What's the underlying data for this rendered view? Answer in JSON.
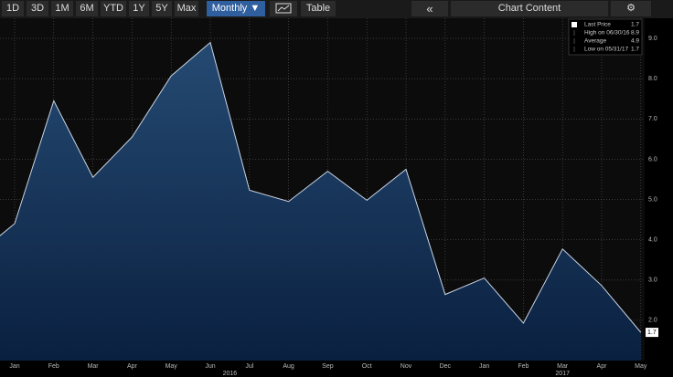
{
  "toolbar": {
    "ranges": [
      "1D",
      "3D",
      "1M",
      "6M",
      "YTD",
      "1Y",
      "5Y",
      "Max"
    ],
    "period": "Monthly ▼",
    "table": "Table",
    "back": "«",
    "content": "Chart Content"
  },
  "chart_data": {
    "type": "area",
    "categories": [
      null,
      "Jan",
      "Feb",
      "Mar",
      "Apr",
      "May",
      "Jun",
      "Jul",
      "Aug",
      "Sep",
      "Oct",
      "Nov",
      "Dec",
      "Jan",
      "Feb",
      "Mar",
      "Apr",
      "May"
    ],
    "x_groups": [
      {
        "label": "2016",
        "from": 1,
        "to": 12
      },
      {
        "label": "2017",
        "from": 13,
        "to": 17
      }
    ],
    "values": [
      3.6,
      4.4,
      7.45,
      5.55,
      6.55,
      8.07,
      8.9,
      5.23,
      4.95,
      5.7,
      4.98,
      5.75,
      2.64,
      3.05,
      1.93,
      3.77,
      2.86,
      1.7
    ],
    "color": "#c8d4e4",
    "ylim": [
      1,
      9.5
    ],
    "yticks": [
      {
        "value": 2,
        "label": "2.0"
      },
      {
        "value": 3,
        "label": "3.0"
      },
      {
        "value": 4,
        "label": "4.0"
      },
      {
        "value": 5,
        "label": "5.0"
      },
      {
        "value": 6,
        "label": "6.0"
      },
      {
        "value": 7,
        "label": "7.0"
      },
      {
        "value": 8,
        "label": "8.0"
      },
      {
        "value": 9,
        "label": "9.0"
      }
    ],
    "grid": true,
    "last_label": "1.7",
    "legend": [
      {
        "label": "Last Price",
        "value": "1.7"
      },
      {
        "label": "High on 06/30/16",
        "value": "8.9"
      },
      {
        "label": "Average",
        "value": "4.9"
      },
      {
        "label": "Low on 05/31/17",
        "value": "1.7"
      }
    ]
  }
}
